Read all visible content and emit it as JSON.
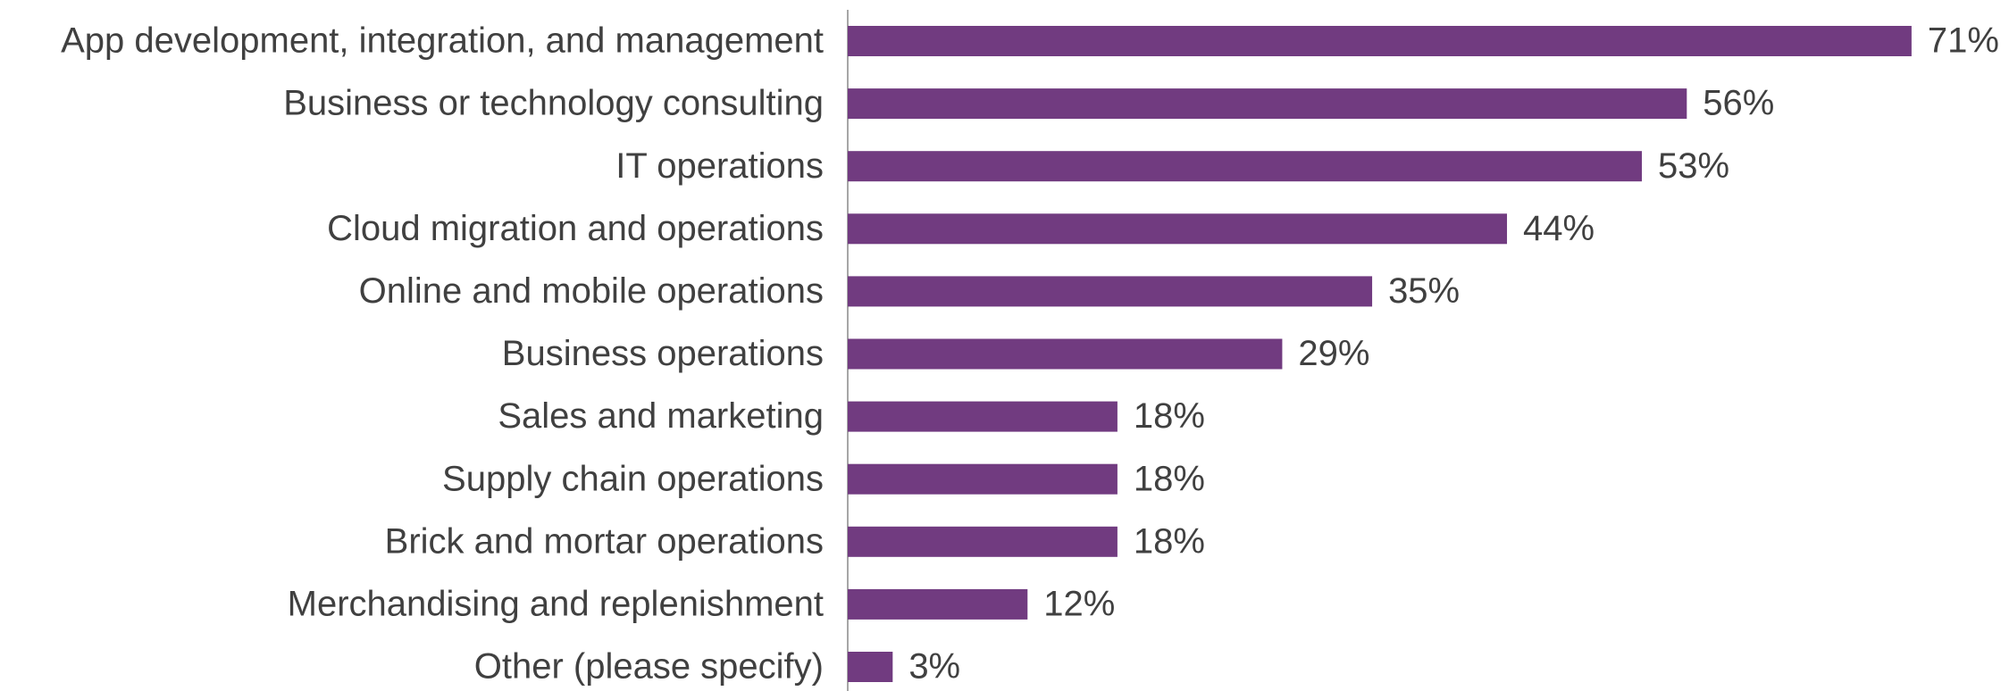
{
  "chart_data": {
    "type": "bar",
    "orientation": "horizontal",
    "categories": [
      "App development, integration, and management",
      "Business or technology consulting",
      "IT operations",
      "Cloud migration and operations",
      "Online and mobile operations",
      "Business operations",
      "Sales and marketing",
      "Supply chain operations",
      "Brick and mortar operations",
      "Merchandising and replenishment",
      "Other (please specify)"
    ],
    "values": [
      71,
      56,
      53,
      44,
      35,
      29,
      18,
      18,
      18,
      12,
      3
    ],
    "value_labels": [
      "71%",
      "56%",
      "53%",
      "44%",
      "35%",
      "29%",
      "18%",
      "18%",
      "18%",
      "12%",
      "3%"
    ],
    "color": "#713b80",
    "xlim": [
      0,
      75
    ],
    "grid": false
  }
}
